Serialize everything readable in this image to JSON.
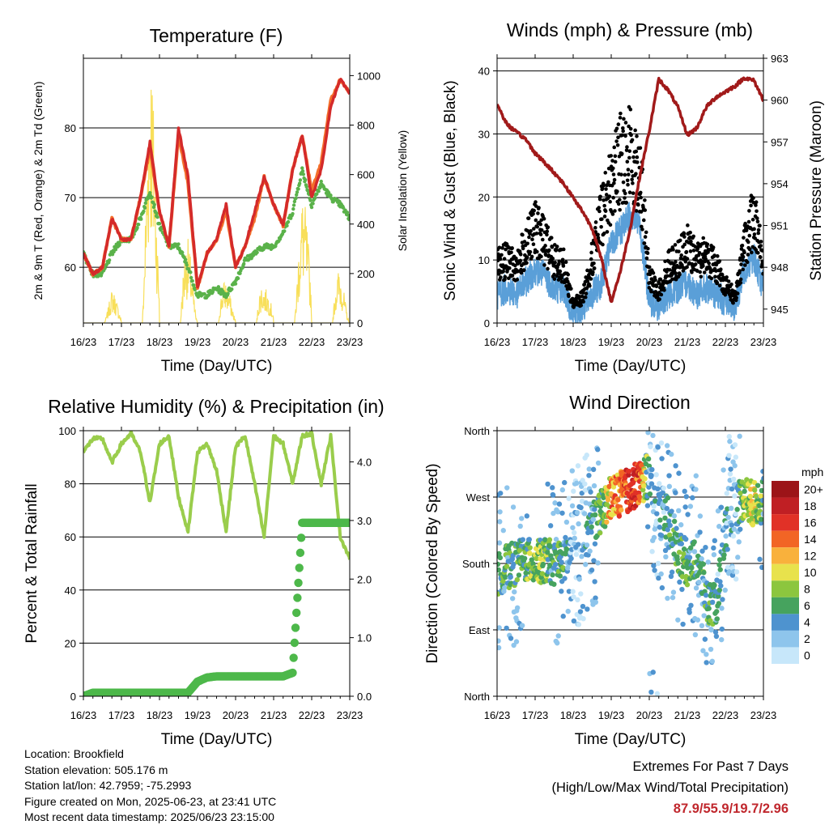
{
  "time_ticks": [
    "16/23",
    "17/23",
    "18/23",
    "19/23",
    "20/23",
    "21/23",
    "22/23",
    "23/23"
  ],
  "colors": {
    "temp2m": "#d42a2a",
    "temp9m": "#f4702c",
    "dewpoint": "#5ab24a",
    "solar": "#f8df5a",
    "wind": "#5a9fd8",
    "gust": "#000000",
    "pressure": "#a11a1a",
    "rh": "#9acd4c",
    "precip": "#4db84a"
  },
  "speed_scale": {
    "unit": "mph",
    "labels": [
      "0",
      "2",
      "4",
      "6",
      "8",
      "10",
      "12",
      "14",
      "16",
      "18",
      "20+"
    ],
    "colors": [
      "#c7e7fa",
      "#8ec5ec",
      "#4e93cf",
      "#46a35e",
      "#8cc63e",
      "#e8e24c",
      "#f9b13c",
      "#f26525",
      "#e13127",
      "#c01f24",
      "#9c1418"
    ]
  },
  "chart_data": [
    {
      "type": "line",
      "title": "Temperature (F)",
      "xlabel": "Time (Day/UTC)",
      "ylabel": "2m & 9m T (Red, Orange) & 2m Td (Green)",
      "y2label": "Solar Insolation (Yellow)",
      "x_ticks": [
        "16/23",
        "17/23",
        "18/23",
        "19/23",
        "20/23",
        "21/23",
        "22/23",
        "23/23"
      ],
      "ylim": [
        52,
        90
      ],
      "y_ticks": [
        60,
        70,
        80
      ],
      "y2lim": [
        0,
        1070
      ],
      "y2_ticks": [
        0,
        200,
        400,
        600,
        800,
        1000
      ],
      "x": [
        0.0,
        0.25,
        0.5,
        0.75,
        1.0,
        1.25,
        1.5,
        1.75,
        2.0,
        2.25,
        2.5,
        2.75,
        3.0,
        3.25,
        3.5,
        3.75,
        4.0,
        4.25,
        4.5,
        4.75,
        5.0,
        5.25,
        5.5,
        5.75,
        6.0,
        6.25,
        6.5,
        6.75,
        7.0
      ],
      "series": [
        {
          "name": "2m T",
          "values": [
            62,
            59,
            60,
            67,
            64,
            64,
            70,
            78,
            68,
            63,
            80,
            73,
            57,
            62,
            64,
            69,
            60,
            63,
            68,
            73,
            69,
            66,
            74,
            79,
            70,
            74,
            83,
            87,
            85
          ]
        },
        {
          "name": "9m T",
          "values": [
            62,
            59,
            60,
            67,
            64,
            64,
            70,
            77,
            68,
            63,
            79,
            72,
            57,
            62,
            64,
            68,
            60,
            63,
            67,
            73,
            69,
            66,
            74,
            79,
            71,
            75,
            84,
            87,
            85
          ]
        },
        {
          "name": "2m Td",
          "values": [
            62,
            59,
            59,
            62,
            64,
            64,
            67,
            71,
            66,
            63,
            63,
            60,
            56,
            56,
            57,
            56,
            58,
            61,
            62,
            63,
            63,
            65,
            68,
            74,
            69,
            72,
            70,
            69,
            67
          ]
        },
        {
          "name": "Solar Insolation",
          "axis": "y2",
          "values": [
            0,
            0,
            30,
            80,
            30,
            250,
            320,
            690,
            210,
            100,
            320,
            200,
            0,
            50,
            190,
            100,
            20,
            100,
            210,
            80,
            60,
            70,
            200,
            300,
            200,
            260,
            250,
            120,
            0
          ]
        }
      ]
    },
    {
      "type": "line",
      "title": "Winds (mph) & Pressure (mb)",
      "xlabel": "Time (Day/UTC)",
      "ylabel": "Sonic Wind & Gust (Blue, Black)",
      "y2label": "Station Pressure (Maroon)",
      "x_ticks": [
        "16/23",
        "17/23",
        "18/23",
        "19/23",
        "20/23",
        "21/23",
        "22/23",
        "23/23"
      ],
      "ylim": [
        0,
        42
      ],
      "y_ticks": [
        0,
        10,
        20,
        30,
        40
      ],
      "y2lim": [
        944.0,
        963.0
      ],
      "y2_ticks": [
        945,
        948,
        951,
        954,
        957,
        960,
        963
      ],
      "x": [
        0.0,
        0.25,
        0.5,
        0.75,
        1.0,
        1.25,
        1.5,
        1.75,
        2.0,
        2.25,
        2.5,
        2.75,
        3.0,
        3.25,
        3.5,
        3.75,
        4.0,
        4.25,
        4.5,
        4.75,
        5.0,
        5.25,
        5.5,
        5.75,
        6.0,
        6.25,
        6.5,
        6.75,
        7.0
      ],
      "series": [
        {
          "name": "Sonic Wind",
          "values": [
            4,
            5,
            4,
            6,
            8,
            7,
            5,
            5,
            1,
            2,
            4,
            6,
            12,
            14,
            17,
            15,
            3,
            2,
            4,
            5,
            6,
            4,
            5,
            4,
            3,
            2,
            8,
            10,
            5
          ]
        },
        {
          "name": "Gust",
          "values": [
            9,
            10,
            9,
            12,
            15,
            13,
            10,
            9,
            3,
            4,
            10,
            17,
            22,
            26,
            27,
            24,
            7,
            5,
            9,
            10,
            12,
            10,
            11,
            9,
            6,
            4,
            12,
            17,
            10
          ]
        },
        {
          "name": "Station Pressure",
          "axis": "y2",
          "values": [
            959.7,
            958.3,
            957.7,
            957.2,
            956.2,
            955.5,
            954.8,
            954.0,
            953.0,
            952.0,
            950.8,
            948.5,
            945.5,
            947.8,
            950.8,
            954.5,
            957.8,
            961.5,
            960.7,
            959.5,
            957.5,
            958.0,
            959.5,
            960.2,
            960.6,
            961.0,
            961.6,
            961.4,
            960.0
          ]
        }
      ]
    },
    {
      "type": "line",
      "title": "Relative Humidity (%) & Precipitation (in)",
      "xlabel": "Time (Day/UTC)",
      "ylabel": "Percent & Total Rainfall",
      "x_ticks": [
        "16/23",
        "17/23",
        "18/23",
        "19/23",
        "20/23",
        "21/23",
        "22/23",
        "23/23"
      ],
      "ylim": [
        0,
        100
      ],
      "y_ticks": [
        0,
        20,
        40,
        60,
        80,
        100
      ],
      "y2lim": [
        0.0,
        4.533
      ],
      "y2_ticks": [
        "0.0",
        "1.0",
        "2.0",
        "3.0",
        "4.0"
      ],
      "x": [
        0.0,
        0.25,
        0.5,
        0.75,
        1.0,
        1.25,
        1.5,
        1.75,
        2.0,
        2.25,
        2.5,
        2.75,
        3.0,
        3.25,
        3.5,
        3.75,
        4.0,
        4.25,
        4.5,
        4.75,
        5.0,
        5.25,
        5.5,
        5.75,
        6.0,
        6.25,
        6.5,
        6.75,
        7.0
      ],
      "series": [
        {
          "name": "Relative Humidity",
          "values": [
            92,
            97,
            97,
            88,
            95,
            99,
            92,
            73,
            95,
            98,
            75,
            62,
            92,
            95,
            85,
            62,
            94,
            98,
            80,
            60,
            98,
            95,
            80,
            98,
            99,
            80,
            98,
            60,
            52
          ]
        },
        {
          "name": "Total Precipitation",
          "axis": "y2",
          "values": [
            0.0,
            0.06,
            0.06,
            0.06,
            0.06,
            0.06,
            0.06,
            0.06,
            0.06,
            0.06,
            0.06,
            0.06,
            0.25,
            0.32,
            0.34,
            0.34,
            0.34,
            0.34,
            0.34,
            0.34,
            0.34,
            0.34,
            0.4,
            2.96,
            2.96,
            2.96,
            2.96,
            2.96,
            2.96
          ]
        }
      ]
    },
    {
      "type": "scatter",
      "title": "Wind Direction",
      "xlabel": "Time (Day/UTC)",
      "ylabel": "Direction (Colored By Speed)",
      "x_ticks": [
        "16/23",
        "17/23",
        "18/23",
        "19/23",
        "20/23",
        "21/23",
        "22/23",
        "23/23"
      ],
      "y_ticks": [
        "North",
        "East",
        "South",
        "West",
        "North"
      ],
      "ylim": [
        0,
        360
      ],
      "x": [
        0.0,
        0.25,
        0.5,
        0.75,
        1.0,
        1.25,
        1.5,
        1.75,
        2.0,
        2.25,
        2.5,
        2.75,
        3.0,
        3.25,
        3.5,
        3.75,
        4.0,
        4.25,
        4.5,
        4.75,
        5.0,
        5.25,
        5.5,
        5.75,
        6.0,
        6.25,
        6.5,
        6.75,
        7.0
      ],
      "series": [
        {
          "name": "Direction",
          "values": [
            165,
            175,
            180,
            185,
            180,
            185,
            180,
            185,
            200,
            210,
            230,
            250,
            270,
            275,
            280,
            290,
            300,
            260,
            240,
            200,
            180,
            190,
            130,
            120,
            230,
            260,
            270,
            260,
            270
          ]
        },
        {
          "name": "Speed",
          "values": [
            4,
            5,
            4,
            6,
            8,
            7,
            5,
            5,
            1,
            2,
            4,
            6,
            12,
            14,
            17,
            15,
            3,
            2,
            4,
            5,
            6,
            4,
            5,
            4,
            3,
            2,
            8,
            10,
            5
          ]
        }
      ]
    }
  ],
  "info": {
    "location": "Location: Brookfield",
    "elevation": "Station elevation: 505.176 m",
    "latlon": "Station lat/lon: 42.7959; -75.2993",
    "created": "Figure created on Mon, 2025-06-23, at 23:41 UTC",
    "recent": "Most recent data timestamp: 2025/06/23 23:15:00"
  },
  "extremes": {
    "title": "Extremes For Past 7 Days",
    "subtitle": "(High/Low/Max Wind/Total Precipitation)",
    "values": "87.9/55.9/19.7/2.96"
  }
}
